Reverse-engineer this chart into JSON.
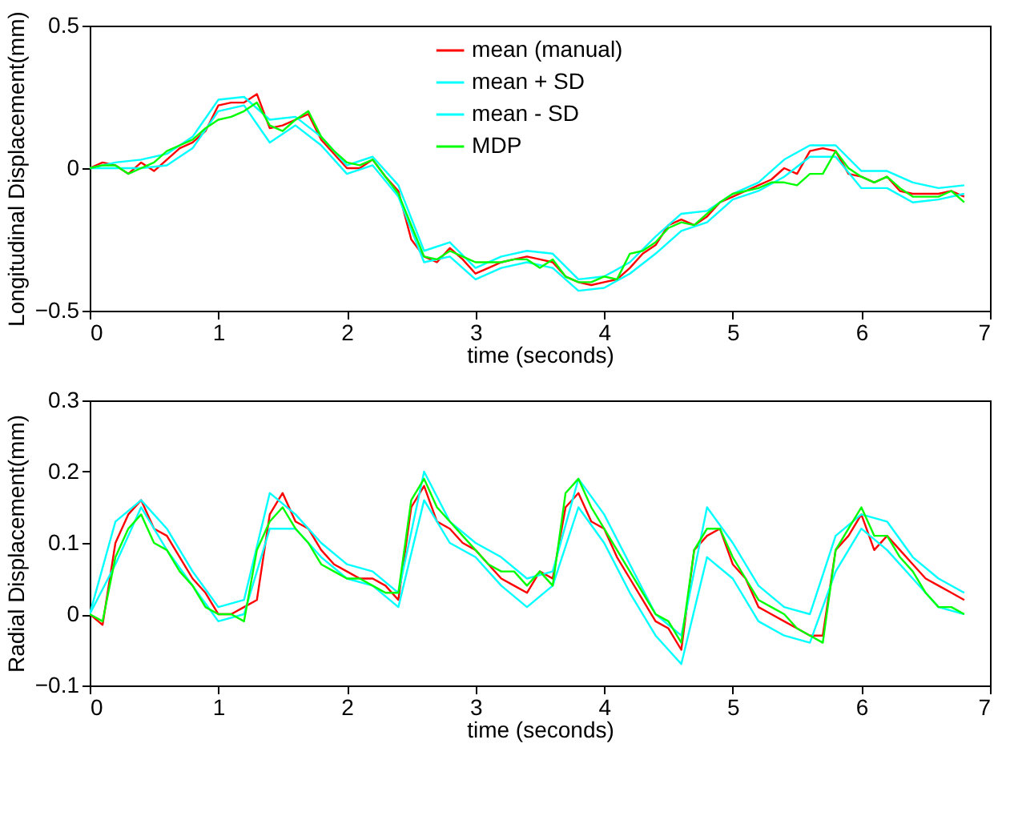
{
  "chart_data": [
    {
      "type": "line",
      "xlabel": "time (seconds)",
      "ylabel": "Longitudinal Displacement(mm)",
      "xlim": [
        0,
        7
      ],
      "xticks": [
        0,
        1,
        2,
        3,
        4,
        5,
        6,
        7
      ],
      "ylim": [
        -0.5,
        0.5
      ],
      "yticks": [
        -0.5,
        0,
        0.5
      ],
      "grid": false,
      "legend": "top",
      "marker": "none",
      "line_style": "solid",
      "x": [
        0,
        0.1,
        0.2,
        0.3,
        0.4,
        0.5,
        0.6,
        0.7,
        0.8,
        0.9,
        1.0,
        1.1,
        1.2,
        1.3,
        1.4,
        1.5,
        1.6,
        1.7,
        1.8,
        1.9,
        2.0,
        2.1,
        2.2,
        2.3,
        2.4,
        2.5,
        2.6,
        2.7,
        2.8,
        2.9,
        3.0,
        3.1,
        3.2,
        3.3,
        3.4,
        3.5,
        3.6,
        3.7,
        3.8,
        3.9,
        4.0,
        4.1,
        4.2,
        4.3,
        4.4,
        4.5,
        4.6,
        4.7,
        4.8,
        4.9,
        5.0,
        5.1,
        5.2,
        5.3,
        5.4,
        5.5,
        5.6,
        5.7,
        5.8,
        5.9,
        6.0,
        6.1,
        6.2,
        6.3,
        6.4,
        6.5,
        6.6,
        6.7,
        6.8
      ],
      "series": [
        {
          "name": "mean (manual)",
          "color": "#ff0000",
          "values": [
            0,
            0.02,
            0.01,
            -0.02,
            0.02,
            -0.01,
            0.03,
            0.07,
            0.09,
            0.13,
            0.22,
            0.23,
            0.23,
            0.26,
            0.14,
            0.15,
            0.17,
            0.19,
            0.1,
            0.05,
            0.0,
            0.0,
            0.03,
            -0.03,
            -0.08,
            -0.25,
            -0.31,
            -0.33,
            -0.28,
            -0.32,
            -0.37,
            -0.35,
            -0.33,
            -0.32,
            -0.31,
            -0.32,
            -0.33,
            -0.38,
            -0.4,
            -0.41,
            -0.4,
            -0.39,
            -0.35,
            -0.3,
            -0.27,
            -0.2,
            -0.18,
            -0.2,
            -0.17,
            -0.12,
            -0.1,
            -0.08,
            -0.06,
            -0.04,
            0.0,
            -0.02,
            0.06,
            0.07,
            0.06,
            -0.02,
            -0.03,
            -0.05,
            -0.03,
            -0.08,
            -0.09,
            -0.09,
            -0.09,
            -0.08,
            -0.1
          ]
        },
        {
          "name": "mean + SD",
          "color": "#00ffff",
          "x": [
            0,
            0.2,
            0.4,
            0.6,
            0.8,
            1.0,
            1.2,
            1.4,
            1.6,
            1.8,
            2.0,
            2.2,
            2.4,
            2.6,
            2.8,
            3.0,
            3.2,
            3.4,
            3.6,
            3.8,
            4.0,
            4.2,
            4.4,
            4.6,
            4.8,
            5.0,
            5.2,
            5.4,
            5.6,
            5.8,
            6.0,
            6.2,
            6.4,
            6.6,
            6.8
          ],
          "values": [
            0,
            0.02,
            0.03,
            0.05,
            0.11,
            0.24,
            0.25,
            0.17,
            0.18,
            0.11,
            0.01,
            0.04,
            -0.06,
            -0.29,
            -0.26,
            -0.35,
            -0.31,
            -0.29,
            -0.3,
            -0.39,
            -0.38,
            -0.33,
            -0.24,
            -0.16,
            -0.15,
            -0.09,
            -0.05,
            0.03,
            0.08,
            0.08,
            -0.01,
            -0.01,
            -0.05,
            -0.07,
            -0.06
          ]
        },
        {
          "name": "mean - SD",
          "color": "#00ffff",
          "x": [
            0,
            0.2,
            0.4,
            0.6,
            0.8,
            1.0,
            1.2,
            1.4,
            1.6,
            1.8,
            2.0,
            2.2,
            2.4,
            2.6,
            2.8,
            3.0,
            3.2,
            3.4,
            3.6,
            3.8,
            4.0,
            4.2,
            4.4,
            4.6,
            4.8,
            5.0,
            5.2,
            5.4,
            5.6,
            5.8,
            6.0,
            6.2,
            6.4,
            6.6,
            6.8
          ],
          "values": [
            0,
            0.0,
            0.0,
            0.01,
            0.07,
            0.2,
            0.22,
            0.09,
            0.15,
            0.08,
            -0.02,
            0.01,
            -0.1,
            -0.33,
            -0.31,
            -0.39,
            -0.35,
            -0.33,
            -0.35,
            -0.43,
            -0.42,
            -0.37,
            -0.3,
            -0.22,
            -0.19,
            -0.11,
            -0.08,
            -0.03,
            0.04,
            0.04,
            -0.07,
            -0.07,
            -0.12,
            -0.11,
            -0.09
          ]
        },
        {
          "name": "MDP",
          "color": "#00ff00",
          "values": [
            0,
            0.01,
            0.01,
            -0.02,
            0.0,
            0.02,
            0.06,
            0.08,
            0.1,
            0.14,
            0.17,
            0.18,
            0.2,
            0.23,
            0.15,
            0.13,
            0.17,
            0.2,
            0.11,
            0.06,
            0.02,
            0.01,
            0.03,
            -0.03,
            -0.09,
            -0.2,
            -0.31,
            -0.32,
            -0.29,
            -0.31,
            -0.33,
            -0.33,
            -0.33,
            -0.32,
            -0.32,
            -0.35,
            -0.32,
            -0.38,
            -0.4,
            -0.4,
            -0.38,
            -0.39,
            -0.3,
            -0.29,
            -0.26,
            -0.21,
            -0.19,
            -0.2,
            -0.16,
            -0.12,
            -0.09,
            -0.08,
            -0.07,
            -0.05,
            -0.05,
            -0.06,
            -0.02,
            -0.02,
            0.06,
            0.0,
            -0.03,
            -0.05,
            -0.03,
            -0.07,
            -0.1,
            -0.1,
            -0.1,
            -0.08,
            -0.12
          ]
        }
      ]
    },
    {
      "type": "line",
      "xlabel": "time (seconds)",
      "ylabel": "Radial Displacement(mm)",
      "xlim": [
        0,
        7
      ],
      "xticks": [
        0,
        1,
        2,
        3,
        4,
        5,
        6,
        7
      ],
      "ylim": [
        -0.1,
        0.3
      ],
      "yticks": [
        -0.1,
        0,
        0.1,
        0.2,
        0.3
      ],
      "grid": false,
      "marker": "none",
      "line_style": "solid",
      "x": [
        0,
        0.1,
        0.2,
        0.3,
        0.4,
        0.5,
        0.6,
        0.7,
        0.8,
        0.9,
        1.0,
        1.1,
        1.2,
        1.3,
        1.4,
        1.5,
        1.6,
        1.7,
        1.8,
        1.9,
        2.0,
        2.1,
        2.2,
        2.3,
        2.4,
        2.5,
        2.6,
        2.7,
        2.8,
        2.9,
        3.0,
        3.1,
        3.2,
        3.3,
        3.4,
        3.5,
        3.6,
        3.7,
        3.8,
        3.9,
        4.0,
        4.1,
        4.2,
        4.3,
        4.4,
        4.5,
        4.6,
        4.7,
        4.8,
        4.9,
        5.0,
        5.1,
        5.2,
        5.3,
        5.4,
        5.5,
        5.6,
        5.7,
        5.8,
        5.9,
        6.0,
        6.1,
        6.2,
        6.3,
        6.4,
        6.5,
        6.6,
        6.7,
        6.8
      ],
      "series": [
        {
          "color": "#ff0000",
          "values": [
            0,
            -0.015,
            0.1,
            0.14,
            0.16,
            0.12,
            0.11,
            0.08,
            0.05,
            0.03,
            0.0,
            0.0,
            0.01,
            0.02,
            0.14,
            0.17,
            0.13,
            0.12,
            0.09,
            0.07,
            0.06,
            0.05,
            0.05,
            0.04,
            0.02,
            0.15,
            0.18,
            0.13,
            0.12,
            0.1,
            0.09,
            0.07,
            0.05,
            0.04,
            0.03,
            0.06,
            0.05,
            0.15,
            0.17,
            0.13,
            0.12,
            0.08,
            0.05,
            0.02,
            -0.01,
            -0.02,
            -0.05,
            0.09,
            0.11,
            0.12,
            0.07,
            0.05,
            0.01,
            0.0,
            -0.01,
            -0.02,
            -0.03,
            -0.03,
            0.09,
            0.11,
            0.14,
            0.09,
            0.11,
            0.09,
            0.07,
            0.05,
            0.04,
            0.03,
            0.02
          ]
        },
        {
          "color": "#00ffff",
          "x": [
            0,
            0.2,
            0.4,
            0.6,
            0.8,
            1.0,
            1.2,
            1.4,
            1.6,
            1.8,
            2.0,
            2.2,
            2.4,
            2.6,
            2.8,
            3.0,
            3.2,
            3.4,
            3.6,
            3.8,
            4.0,
            4.2,
            4.4,
            4.6,
            4.8,
            5.0,
            5.2,
            5.4,
            5.6,
            5.8,
            6.0,
            6.2,
            6.4,
            6.6,
            6.8
          ],
          "values": [
            0,
            0.13,
            0.16,
            0.12,
            0.06,
            0.01,
            0.02,
            0.17,
            0.14,
            0.1,
            0.07,
            0.06,
            0.03,
            0.2,
            0.13,
            0.1,
            0.08,
            0.05,
            0.06,
            0.19,
            0.14,
            0.07,
            0.0,
            -0.03,
            0.15,
            0.1,
            0.04,
            0.01,
            0.0,
            0.11,
            0.14,
            0.13,
            0.08,
            0.05,
            0.03
          ]
        },
        {
          "color": "#00ffff",
          "x": [
            0,
            0.2,
            0.4,
            0.6,
            0.8,
            1.0,
            1.2,
            1.4,
            1.6,
            1.8,
            2.0,
            2.2,
            2.4,
            2.6,
            2.8,
            3.0,
            3.2,
            3.4,
            3.6,
            3.8,
            4.0,
            4.2,
            4.4,
            4.6,
            4.8,
            5.0,
            5.2,
            5.4,
            5.6,
            5.8,
            6.0,
            6.2,
            6.4,
            6.6,
            6.8
          ],
          "values": [
            0,
            0.07,
            0.15,
            0.09,
            0.04,
            -0.01,
            0.0,
            0.12,
            0.12,
            0.08,
            0.05,
            0.04,
            0.01,
            0.16,
            0.1,
            0.08,
            0.04,
            0.01,
            0.04,
            0.15,
            0.1,
            0.03,
            -0.03,
            -0.07,
            0.08,
            0.05,
            -0.01,
            -0.03,
            -0.04,
            0.06,
            0.12,
            0.09,
            0.05,
            0.01,
            0.0
          ]
        },
        {
          "color": "#00ff00",
          "values": [
            0,
            -0.01,
            0.08,
            0.12,
            0.14,
            0.1,
            0.09,
            0.06,
            0.04,
            0.01,
            0.0,
            0.0,
            -0.01,
            0.09,
            0.13,
            0.15,
            0.12,
            0.1,
            0.07,
            0.06,
            0.05,
            0.05,
            0.04,
            0.03,
            0.03,
            0.16,
            0.19,
            0.15,
            0.13,
            0.11,
            0.09,
            0.07,
            0.06,
            0.06,
            0.04,
            0.06,
            0.04,
            0.17,
            0.19,
            0.15,
            0.12,
            0.09,
            0.06,
            0.03,
            0.0,
            -0.01,
            -0.04,
            0.09,
            0.12,
            0.12,
            0.08,
            0.05,
            0.02,
            0.01,
            0.0,
            -0.02,
            -0.03,
            -0.04,
            0.09,
            0.12,
            0.15,
            0.11,
            0.11,
            0.08,
            0.06,
            0.03,
            0.01,
            0.01,
            0.0
          ]
        }
      ]
    }
  ]
}
